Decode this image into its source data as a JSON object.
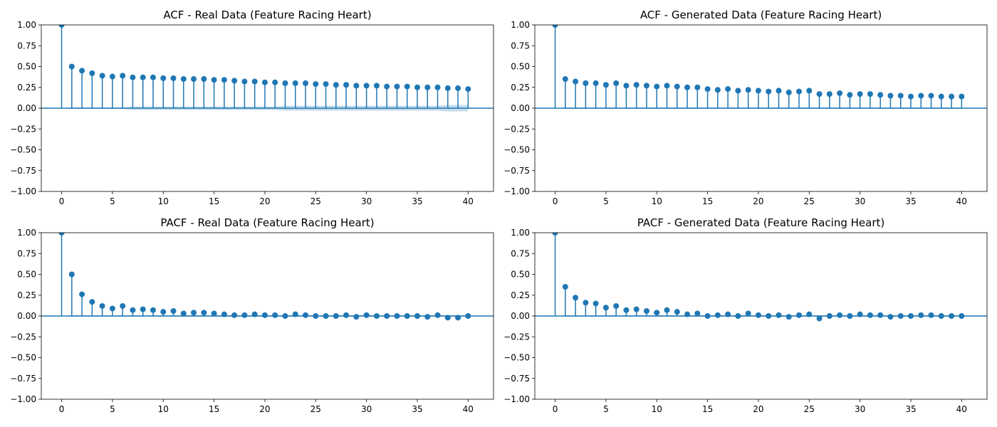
{
  "chart_data": [
    {
      "type": "stem",
      "title": "ACF - Real Data (Feature Racing Heart)",
      "xlabel": "",
      "ylabel": "",
      "xlim": [
        -2,
        42.5
      ],
      "ylim": [
        -1.0,
        1.0
      ],
      "xticks": [
        "0",
        "5",
        "10",
        "15",
        "20",
        "25",
        "30",
        "35",
        "40"
      ],
      "yticks": [
        "−1.00",
        "−0.75",
        "−0.50",
        "−0.25",
        "0.00",
        "0.25",
        "0.50",
        "0.75",
        "1.00"
      ],
      "grid": false,
      "lags": [
        0,
        1,
        2,
        3,
        4,
        5,
        6,
        7,
        8,
        9,
        10,
        11,
        12,
        13,
        14,
        15,
        16,
        17,
        18,
        19,
        20,
        21,
        22,
        23,
        24,
        25,
        26,
        27,
        28,
        29,
        30,
        31,
        32,
        33,
        34,
        35,
        36,
        37,
        38,
        39,
        40
      ],
      "values": [
        1.0,
        0.5,
        0.45,
        0.42,
        0.39,
        0.38,
        0.39,
        0.37,
        0.37,
        0.37,
        0.36,
        0.36,
        0.35,
        0.35,
        0.35,
        0.34,
        0.34,
        0.33,
        0.32,
        0.32,
        0.31,
        0.31,
        0.3,
        0.3,
        0.3,
        0.29,
        0.29,
        0.28,
        0.28,
        0.27,
        0.27,
        0.27,
        0.26,
        0.26,
        0.26,
        0.25,
        0.25,
        0.25,
        0.24,
        0.24,
        0.23
      ],
      "confidence_upper": [
        0.0,
        0.01,
        0.01,
        0.01,
        0.01,
        0.01,
        0.01,
        0.02,
        0.02,
        0.02,
        0.02,
        0.02,
        0.02,
        0.02,
        0.02,
        0.02,
        0.02,
        0.02,
        0.02,
        0.02,
        0.02,
        0.02,
        0.03,
        0.03,
        0.03,
        0.03,
        0.03,
        0.03,
        0.03,
        0.03,
        0.03,
        0.03,
        0.03,
        0.03,
        0.03,
        0.03,
        0.03,
        0.03,
        0.04,
        0.04,
        0.04
      ],
      "confidence_lower": [
        0.0,
        -0.01,
        -0.01,
        -0.01,
        -0.01,
        -0.01,
        -0.01,
        -0.02,
        -0.02,
        -0.02,
        -0.02,
        -0.02,
        -0.02,
        -0.02,
        -0.02,
        -0.02,
        -0.02,
        -0.02,
        -0.02,
        -0.02,
        -0.02,
        -0.02,
        -0.03,
        -0.03,
        -0.03,
        -0.03,
        -0.03,
        -0.03,
        -0.03,
        -0.03,
        -0.03,
        -0.03,
        -0.03,
        -0.03,
        -0.03,
        -0.03,
        -0.03,
        -0.03,
        -0.04,
        -0.04,
        -0.04
      ]
    },
    {
      "type": "stem",
      "title": "ACF - Generated Data (Feature Racing Heart)",
      "xlabel": "",
      "ylabel": "",
      "xlim": [
        -2,
        42.5
      ],
      "ylim": [
        -1.0,
        1.0
      ],
      "xticks": [
        "0",
        "5",
        "10",
        "15",
        "20",
        "25",
        "30",
        "35",
        "40"
      ],
      "yticks": [
        "−1.00",
        "−0.75",
        "−0.50",
        "−0.25",
        "0.00",
        "0.25",
        "0.50",
        "0.75",
        "1.00"
      ],
      "grid": false,
      "lags": [
        0,
        1,
        2,
        3,
        4,
        5,
        6,
        7,
        8,
        9,
        10,
        11,
        12,
        13,
        14,
        15,
        16,
        17,
        18,
        19,
        20,
        21,
        22,
        23,
        24,
        25,
        26,
        27,
        28,
        29,
        30,
        31,
        32,
        33,
        34,
        35,
        36,
        37,
        38,
        39,
        40
      ],
      "values": [
        1.0,
        0.35,
        0.32,
        0.3,
        0.3,
        0.28,
        0.3,
        0.27,
        0.28,
        0.27,
        0.26,
        0.27,
        0.26,
        0.25,
        0.25,
        0.23,
        0.22,
        0.23,
        0.21,
        0.22,
        0.21,
        0.2,
        0.21,
        0.19,
        0.2,
        0.21,
        0.17,
        0.17,
        0.18,
        0.16,
        0.17,
        0.17,
        0.16,
        0.15,
        0.15,
        0.14,
        0.15,
        0.15,
        0.14,
        0.14,
        0.14
      ],
      "confidence_upper": [
        0.0,
        0.01,
        0.01,
        0.01,
        0.01,
        0.01,
        0.01,
        0.01,
        0.01,
        0.01,
        0.01,
        0.01,
        0.01,
        0.01,
        0.01,
        0.01,
        0.01,
        0.01,
        0.01,
        0.01,
        0.01,
        0.01,
        0.01,
        0.01,
        0.01,
        0.01,
        0.01,
        0.01,
        0.01,
        0.01,
        0.01,
        0.01,
        0.01,
        0.01,
        0.01,
        0.01,
        0.01,
        0.01,
        0.01,
        0.01,
        0.01
      ],
      "confidence_lower": [
        0.0,
        -0.01,
        -0.01,
        -0.01,
        -0.01,
        -0.01,
        -0.01,
        -0.01,
        -0.01,
        -0.01,
        -0.01,
        -0.01,
        -0.01,
        -0.01,
        -0.01,
        -0.01,
        -0.01,
        -0.01,
        -0.01,
        -0.01,
        -0.01,
        -0.01,
        -0.01,
        -0.01,
        -0.01,
        -0.01,
        -0.01,
        -0.01,
        -0.01,
        -0.01,
        -0.01,
        -0.01,
        -0.01,
        -0.01,
        -0.01,
        -0.01,
        -0.01,
        -0.01,
        -0.01,
        -0.01,
        -0.01
      ]
    },
    {
      "type": "stem",
      "title": "PACF - Real Data (Feature Racing Heart)",
      "xlabel": "",
      "ylabel": "",
      "xlim": [
        -2,
        42.5
      ],
      "ylim": [
        -1.0,
        1.0
      ],
      "xticks": [
        "0",
        "5",
        "10",
        "15",
        "20",
        "25",
        "30",
        "35",
        "40"
      ],
      "yticks": [
        "−1.00",
        "−0.75",
        "−0.50",
        "−0.25",
        "0.00",
        "0.25",
        "0.50",
        "0.75",
        "1.00"
      ],
      "grid": false,
      "lags": [
        0,
        1,
        2,
        3,
        4,
        5,
        6,
        7,
        8,
        9,
        10,
        11,
        12,
        13,
        14,
        15,
        16,
        17,
        18,
        19,
        20,
        21,
        22,
        23,
        24,
        25,
        26,
        27,
        28,
        29,
        30,
        31,
        32,
        33,
        34,
        35,
        36,
        37,
        38,
        39,
        40
      ],
      "values": [
        1.0,
        0.5,
        0.26,
        0.17,
        0.12,
        0.09,
        0.12,
        0.07,
        0.08,
        0.07,
        0.05,
        0.06,
        0.03,
        0.04,
        0.04,
        0.03,
        0.02,
        0.01,
        0.01,
        0.02,
        0.01,
        0.01,
        0.0,
        0.02,
        0.01,
        0.0,
        0.0,
        0.0,
        0.01,
        -0.01,
        0.01,
        0.0,
        0.0,
        0.0,
        0.0,
        0.0,
        -0.01,
        0.01,
        -0.02,
        -0.02,
        0.0
      ],
      "confidence_upper": [
        0.0,
        0.01,
        0.01,
        0.01,
        0.01,
        0.01,
        0.01,
        0.01,
        0.01,
        0.01,
        0.01,
        0.01,
        0.01,
        0.01,
        0.01,
        0.01,
        0.01,
        0.01,
        0.01,
        0.01,
        0.01,
        0.01,
        0.01,
        0.01,
        0.01,
        0.01,
        0.01,
        0.01,
        0.01,
        0.01,
        0.01,
        0.01,
        0.01,
        0.01,
        0.01,
        0.01,
        0.01,
        0.01,
        0.01,
        0.01,
        0.01
      ],
      "confidence_lower": [
        0.0,
        -0.01,
        -0.01,
        -0.01,
        -0.01,
        -0.01,
        -0.01,
        -0.01,
        -0.01,
        -0.01,
        -0.01,
        -0.01,
        -0.01,
        -0.01,
        -0.01,
        -0.01,
        -0.01,
        -0.01,
        -0.01,
        -0.01,
        -0.01,
        -0.01,
        -0.01,
        -0.01,
        -0.01,
        -0.01,
        -0.01,
        -0.01,
        -0.01,
        -0.01,
        -0.01,
        -0.01,
        -0.01,
        -0.01,
        -0.01,
        -0.01,
        -0.01,
        -0.01,
        -0.01,
        -0.01,
        -0.01
      ]
    },
    {
      "type": "stem",
      "title": "PACF - Generated Data (Feature Racing Heart)",
      "xlabel": "",
      "ylabel": "",
      "xlim": [
        -2,
        42.5
      ],
      "ylim": [
        -1.0,
        1.0
      ],
      "xticks": [
        "0",
        "5",
        "10",
        "15",
        "20",
        "25",
        "30",
        "35",
        "40"
      ],
      "yticks": [
        "−1.00",
        "−0.75",
        "−0.50",
        "−0.25",
        "0.00",
        "0.25",
        "0.50",
        "0.75",
        "1.00"
      ],
      "grid": false,
      "lags": [
        0,
        1,
        2,
        3,
        4,
        5,
        6,
        7,
        8,
        9,
        10,
        11,
        12,
        13,
        14,
        15,
        16,
        17,
        18,
        19,
        20,
        21,
        22,
        23,
        24,
        25,
        26,
        27,
        28,
        29,
        30,
        31,
        32,
        33,
        34,
        35,
        36,
        37,
        38,
        39,
        40
      ],
      "values": [
        1.0,
        0.35,
        0.22,
        0.16,
        0.15,
        0.1,
        0.12,
        0.07,
        0.08,
        0.06,
        0.04,
        0.07,
        0.05,
        0.02,
        0.03,
        0.0,
        0.01,
        0.02,
        0.0,
        0.03,
        0.01,
        0.0,
        0.01,
        -0.01,
        0.01,
        0.02,
        -0.03,
        0.0,
        0.01,
        0.0,
        0.02,
        0.01,
        0.01,
        -0.01,
        0.0,
        0.0,
        0.01,
        0.01,
        0.0,
        0.0,
        0.0
      ],
      "confidence_upper": [
        0.0,
        0.01,
        0.01,
        0.01,
        0.01,
        0.01,
        0.01,
        0.01,
        0.01,
        0.01,
        0.01,
        0.01,
        0.01,
        0.01,
        0.01,
        0.01,
        0.01,
        0.01,
        0.01,
        0.01,
        0.01,
        0.01,
        0.01,
        0.01,
        0.01,
        0.01,
        0.01,
        0.01,
        0.01,
        0.01,
        0.01,
        0.01,
        0.01,
        0.01,
        0.01,
        0.01,
        0.01,
        0.01,
        0.01,
        0.01,
        0.01
      ],
      "confidence_lower": [
        0.0,
        -0.01,
        -0.01,
        -0.01,
        -0.01,
        -0.01,
        -0.01,
        -0.01,
        -0.01,
        -0.01,
        -0.01,
        -0.01,
        -0.01,
        -0.01,
        -0.01,
        -0.01,
        -0.01,
        -0.01,
        -0.01,
        -0.01,
        -0.01,
        -0.01,
        -0.01,
        -0.01,
        -0.01,
        -0.01,
        -0.01,
        -0.01,
        -0.01,
        -0.01,
        -0.01,
        -0.01,
        -0.01,
        -0.01,
        -0.01,
        -0.01,
        -0.01,
        -0.01,
        -0.01,
        -0.01,
        -0.01
      ]
    }
  ],
  "colors": {
    "stem": "#1f77b4",
    "marker": "#1f77b4",
    "baseline": "#1f77b4",
    "confidence_band": "#1f77b4",
    "axes": "#000000"
  }
}
